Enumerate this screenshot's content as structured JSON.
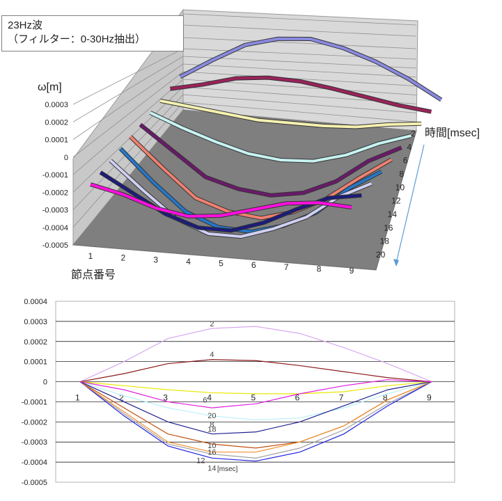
{
  "title": {
    "line1": "23Hz波",
    "line2": "（フィルター：0-30Hz抽出）"
  },
  "colors": {
    "surface_2": "#8a8ae0",
    "surface_4": "#99235a",
    "surface_6": "#f4f0b0",
    "surface_8": "#c8f2f2",
    "surface_10": "#6a1a6a",
    "surface_12": "#f08070",
    "surface_14": "#2577c8",
    "surface_16": "#d0d0f4",
    "surface_18": "#1c1c7a",
    "surface_20": "#ff10e0",
    "wall": "#cfcfcf",
    "floor": "#7f7f7f"
  },
  "chart_data": [
    {
      "type": "surface3d",
      "ylabel": "ω[m]",
      "xlabel": "節点番号",
      "zlabel": "時間[msec]",
      "ylim": [
        -0.0005,
        0.0003
      ],
      "ytick_labels": [
        "0.0003",
        "0.0002",
        "0.0001",
        "0",
        "-0.0001",
        "-0.0002",
        "-0.0003",
        "-0.0004",
        "-0.0005"
      ],
      "x": [
        1,
        2,
        3,
        4,
        5,
        6,
        7,
        8,
        9
      ],
      "x_tick_labels": [
        "1",
        "2",
        "3",
        "4",
        "5",
        "6",
        "7",
        "8",
        "9"
      ],
      "z_tick_labels": [
        "2",
        "4",
        "6",
        "8",
        "10",
        "12",
        "14",
        "16",
        "18",
        "20"
      ],
      "series": [
        {
          "name": "2",
          "values": [
            0,
            0.00011,
            0.00021,
            0.00026,
            0.000275,
            0.00024,
            0.00018,
            0.0001,
            0
          ]
        },
        {
          "name": "4",
          "values": [
            0,
            4e-05,
            9e-05,
            0.00011,
            0.000105,
            8e-05,
            5e-05,
            2e-05,
            0
          ]
        },
        {
          "name": "6",
          "values": [
            0,
            -2e-05,
            -4e-05,
            -6e-05,
            -6e-05,
            -6e-05,
            -5e-05,
            -2e-05,
            0
          ]
        },
        {
          "name": "8",
          "values": [
            0,
            -7e-05,
            -0.00013,
            -0.00018,
            -0.0002,
            -0.00019,
            -0.00014,
            -6e-05,
            0
          ]
        },
        {
          "name": "10",
          "values": [
            0,
            -0.00013,
            -0.00026,
            -0.00031,
            -0.00033,
            -0.0003,
            -0.00022,
            -9e-05,
            0
          ]
        },
        {
          "name": "12",
          "values": [
            0,
            -0.00016,
            -0.00031,
            -0.00037,
            -0.00039,
            -0.00034,
            -0.00025,
            -0.00012,
            0
          ]
        },
        {
          "name": "14",
          "values": [
            0,
            -0.00017,
            -0.00032,
            -0.00039,
            -0.0004,
            -0.00035,
            -0.00026,
            -0.00011,
            0
          ]
        },
        {
          "name": "16",
          "values": [
            0,
            -0.00015,
            -0.00029,
            -0.00036,
            -0.00036,
            -0.0003,
            -0.00022,
            -9e-05,
            0
          ]
        },
        {
          "name": "18",
          "values": [
            0,
            -0.0001,
            -0.0002,
            -0.00026,
            -0.00026,
            -0.0002,
            -0.00011,
            -3e-05,
            0
          ]
        },
        {
          "name": "20",
          "values": [
            0,
            -4e-05,
            -0.0001,
            -0.00013,
            -0.00011,
            -6e-05,
            -1e-05,
            1e-05,
            0
          ]
        }
      ]
    },
    {
      "type": "line",
      "xlabel": "",
      "ylabel": "",
      "ylim": [
        -0.0005,
        0.0004
      ],
      "ytick_labels": [
        "0.0004",
        "0.0003",
        "0.0002",
        "0.0001",
        "0",
        "-0.0001",
        "-0.0002",
        "-0.0003",
        "-0.0004",
        "-0.0005"
      ],
      "x": [
        1,
        2,
        3,
        4,
        5,
        6,
        7,
        8,
        9
      ],
      "x_tick_labels": [
        "1",
        "2",
        "3",
        "4",
        "5",
        "6",
        "7",
        "8",
        "9"
      ],
      "unit_label": "[msec]",
      "grid": true,
      "series": [
        {
          "name": "2",
          "label_at": 4,
          "values": [
            0,
            0.0001,
            0.000215,
            0.000265,
            0.000275,
            0.00024,
            0.00017,
            9e-05,
            0
          ]
        },
        {
          "name": "4",
          "label_at": 4,
          "values": [
            0,
            4e-05,
            9e-05,
            0.00011,
            0.000105,
            8e-05,
            5e-05,
            2e-05,
            0
          ]
        },
        {
          "name": "6",
          "label_at": 4,
          "values": [
            0,
            -2e-05,
            -4e-05,
            -5.5e-05,
            -6e-05,
            -6e-05,
            -5e-05,
            -2e-05,
            0
          ]
        },
        {
          "name": "8",
          "label_at": 4,
          "values": [
            0,
            -7e-05,
            -0.00013,
            -0.00017,
            -0.00019,
            -0.00018,
            -0.00013,
            -6e-05,
            0
          ]
        },
        {
          "name": "10",
          "label_at": 4,
          "values": [
            0,
            -0.00013,
            -0.00026,
            -0.00031,
            -0.00033,
            -0.0003,
            -0.00022,
            -9e-05,
            0
          ]
        },
        {
          "name": "12",
          "label_at": 4,
          "values": [
            0,
            -0.00016,
            -0.00031,
            -0.00036,
            -0.00038,
            -0.00033,
            -0.00024,
            -0.00011,
            0
          ]
        },
        {
          "name": "14",
          "label_at": 4,
          "values": [
            0,
            -0.00017,
            -0.00032,
            -0.00038,
            -0.000395,
            -0.00035,
            -0.00026,
            -0.00012,
            0
          ]
        },
        {
          "name": "16",
          "label_at": 4,
          "values": [
            0,
            -0.00015,
            -0.0003,
            -0.00035,
            -0.00035,
            -0.0003,
            -0.00022,
            -9e-05,
            0
          ]
        },
        {
          "name": "18",
          "label_at": 4,
          "values": [
            0,
            -0.0001,
            -0.0002,
            -0.00026,
            -0.00025,
            -0.0002,
            -0.00012,
            -4e-05,
            0
          ]
        },
        {
          "name": "20",
          "label_at": 4,
          "values": [
            0,
            -4e-05,
            -0.0001,
            -0.00013,
            -0.00011,
            -6e-05,
            -2e-05,
            1e-05,
            0
          ]
        }
      ],
      "series_colors": [
        "#d8a8f0",
        "#8b1a1a",
        "#e8e800",
        "#b8f0f8",
        "#c05010",
        "#a0a0a0",
        "#2020e0",
        "#f09030",
        "#202090",
        "#e020e0"
      ]
    }
  ]
}
